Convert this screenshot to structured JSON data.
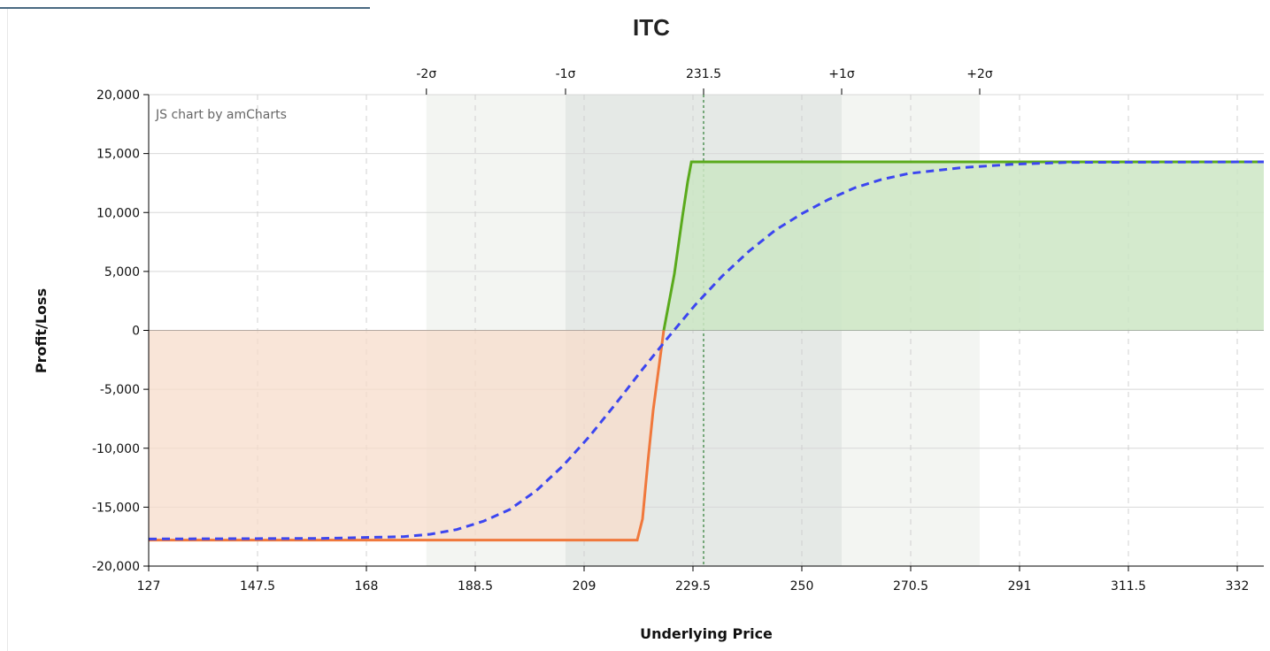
{
  "chart_data": {
    "type": "area",
    "title": "ITC",
    "credit": "JS chart by amCharts",
    "xlabel": "Underlying Price",
    "ylabel": "Profit/Loss",
    "xlim": [
      127,
      337
    ],
    "ylim": [
      -20000,
      20000
    ],
    "x_ticks": [
      127,
      147.5,
      168,
      188.5,
      209,
      229.5,
      250,
      270.5,
      291,
      311.5,
      332
    ],
    "x_tick_labels": [
      "127",
      "147.5",
      "168",
      "188.5",
      "209",
      "229.5",
      "250",
      "270.5",
      "291",
      "311.5",
      "332"
    ],
    "y_ticks": [
      -20000,
      -15000,
      -10000,
      -5000,
      0,
      5000,
      10000,
      15000,
      20000
    ],
    "y_tick_labels": [
      "-20,000",
      "-15,000",
      "-10,000",
      "-5,000",
      "0",
      "5,000",
      "10,000",
      "15,000",
      "20,000"
    ],
    "top_axis": [
      {
        "x": 179.3,
        "label": "-2σ"
      },
      {
        "x": 205.5,
        "label": "-1σ"
      },
      {
        "x": 231.5,
        "label": "231.5"
      },
      {
        "x": 257.5,
        "label": "+1σ"
      },
      {
        "x": 283.5,
        "label": "+2σ"
      }
    ],
    "current_price": 231.5,
    "bands": {
      "two_sigma": [
        179.3,
        283.5
      ],
      "one_sigma": [
        205.5,
        257.5
      ]
    },
    "colors": {
      "profit_line": "#5aaa1c",
      "loss_line": "#f0783c",
      "profit_fill": "#cde6c4",
      "loss_fill": "#f7dccb",
      "dashed_line": "#3c46f0",
      "band_outer": "#f3f5f2",
      "band_inner": "#e5e9e6",
      "price_marker": "#2e7d32"
    },
    "series": [
      {
        "style": "solid",
        "x": [
          127,
          219,
          220,
          221,
          222,
          224,
          226,
          227.5,
          228.5,
          229.2,
          337
        ],
        "y": [
          -17800,
          -17800,
          -16000,
          -11200,
          -6800,
          0,
          4800,
          9600,
          12600,
          14300,
          14300
        ]
      },
      {
        "style": "dashed",
        "x": [
          127,
          160,
          175,
          180,
          185,
          190,
          195,
          200,
          205,
          210,
          215,
          220,
          225,
          230,
          235,
          240,
          245,
          250,
          255,
          260,
          265,
          270,
          280,
          290,
          300,
          337
        ],
        "y": [
          -17700,
          -17650,
          -17500,
          -17300,
          -16900,
          -16200,
          -15200,
          -13600,
          -11500,
          -9000,
          -6200,
          -3300,
          -500,
          2200,
          4600,
          6700,
          8500,
          9900,
          11100,
          12100,
          12800,
          13300,
          13800,
          14100,
          14250,
          14300
        ]
      }
    ]
  }
}
